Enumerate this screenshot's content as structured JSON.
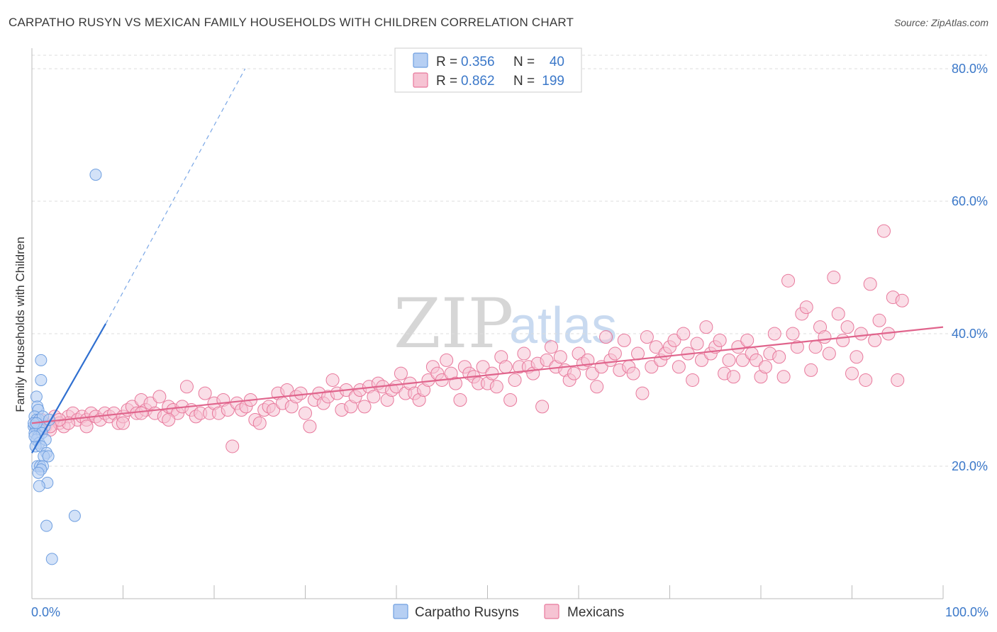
{
  "title": "CARPATHO RUSYN VS MEXICAN FAMILY HOUSEHOLDS WITH CHILDREN CORRELATION CHART",
  "source": "Source: ZipAtlas.com",
  "watermark": {
    "zip": "ZIP",
    "atlas": "atlas"
  },
  "colors": {
    "blue": "#6f9fe0",
    "blue_fill": "#b6cff3",
    "blue_line": "#2f6fd0",
    "pink": "#e8799c",
    "pink_fill": "#f6c3d3",
    "pink_line": "#e0648c",
    "axis_text": "#3b78c9",
    "grid": "#dddddd"
  },
  "legend": {
    "rows": [
      {
        "r_label": "R = ",
        "r_value": "0.356",
        "n_label": "N = ",
        "n_value": "40"
      },
      {
        "r_label": "R = ",
        "r_value": "0.862",
        "n_label": "N = ",
        "n_value": "199"
      }
    ]
  },
  "bottom_legend": [
    "Carpatho Rusyns",
    "Mexicans"
  ],
  "chart_data": {
    "type": "scatter",
    "title": "CARPATHO RUSYN VS MEXICAN FAMILY HOUSEHOLDS WITH CHILDREN CORRELATION CHART",
    "xlabel": "",
    "ylabel": "Family Households with Children",
    "xlim": [
      0,
      100
    ],
    "ylim": [
      0,
      80
    ],
    "x_ticks": [
      "0.0%",
      "100.0%"
    ],
    "y_ticks": [
      "20.0%",
      "40.0%",
      "60.0%",
      "80.0%"
    ],
    "y_tick_values": [
      20,
      40,
      60,
      80
    ],
    "grid": "horizontal dashed",
    "legend_position": "top-center",
    "series": [
      {
        "name": "Carpatho Rusyns",
        "R": 0.356,
        "N": 40,
        "trend": {
          "x0": 0,
          "y0": 22,
          "x1": 8.1,
          "y1": 41.5,
          "dashed_to_x": 23.4,
          "dashed_to_y": 80
        },
        "points": [
          [
            7.0,
            64.0
          ],
          [
            0.5,
            30.5
          ],
          [
            0.6,
            29.0
          ],
          [
            0.7,
            28.5
          ],
          [
            1.0,
            36.0
          ],
          [
            1.0,
            33.0
          ],
          [
            0.3,
            27.5
          ],
          [
            0.5,
            27.0
          ],
          [
            0.8,
            27.0
          ],
          [
            1.2,
            27.5
          ],
          [
            0.2,
            26.0
          ],
          [
            0.4,
            26.0
          ],
          [
            0.6,
            25.5
          ],
          [
            0.9,
            25.5
          ],
          [
            1.4,
            26.0
          ],
          [
            0.3,
            25.0
          ],
          [
            0.7,
            24.5
          ],
          [
            1.1,
            25.0
          ],
          [
            0.5,
            24.0
          ],
          [
            0.8,
            23.5
          ],
          [
            1.5,
            24.0
          ],
          [
            0.4,
            23.0
          ],
          [
            1.0,
            23.0
          ],
          [
            1.6,
            22.0
          ],
          [
            1.3,
            21.5
          ],
          [
            1.8,
            21.5
          ],
          [
            0.6,
            20.0
          ],
          [
            0.9,
            20.0
          ],
          [
            1.2,
            20.0
          ],
          [
            1.0,
            19.5
          ],
          [
            0.7,
            19.0
          ],
          [
            1.7,
            17.5
          ],
          [
            0.8,
            17.0
          ],
          [
            4.7,
            12.5
          ],
          [
            1.6,
            11.0
          ],
          [
            2.2,
            6.0
          ],
          [
            0.2,
            26.5
          ],
          [
            0.5,
            26.5
          ],
          [
            0.3,
            24.5
          ],
          [
            1.9,
            27.0
          ]
        ]
      },
      {
        "name": "Mexicans",
        "R": 0.862,
        "N": 199,
        "trend": {
          "x0": 0,
          "y0": 26.5,
          "x1": 100,
          "y1": 41.0
        },
        "points": [
          [
            0.5,
            26.5
          ],
          [
            1.0,
            27.0
          ],
          [
            1.5,
            26.0
          ],
          [
            2.0,
            25.5
          ],
          [
            2.5,
            27.5
          ],
          [
            3.0,
            26.5
          ],
          [
            3.5,
            26.0
          ],
          [
            4.0,
            27.5
          ],
          [
            4.5,
            28.0
          ],
          [
            5.0,
            27.0
          ],
          [
            5.5,
            27.5
          ],
          [
            6.0,
            27.0
          ],
          [
            6.5,
            28.0
          ],
          [
            7.0,
            27.5
          ],
          [
            7.5,
            27.0
          ],
          [
            8.0,
            28.0
          ],
          [
            8.5,
            27.5
          ],
          [
            9.0,
            28.0
          ],
          [
            9.5,
            26.5
          ],
          [
            10.0,
            27.5
          ],
          [
            10.5,
            28.5
          ],
          [
            11.0,
            29.0
          ],
          [
            11.5,
            28.0
          ],
          [
            12.0,
            30.0
          ],
          [
            12.5,
            28.5
          ],
          [
            13.0,
            29.5
          ],
          [
            13.5,
            28.0
          ],
          [
            14.0,
            30.5
          ],
          [
            14.5,
            27.5
          ],
          [
            15.0,
            29.0
          ],
          [
            15.5,
            28.5
          ],
          [
            16.0,
            28.0
          ],
          [
            16.5,
            29.0
          ],
          [
            17.0,
            32.0
          ],
          [
            17.5,
            28.5
          ],
          [
            18.0,
            27.5
          ],
          [
            18.5,
            28.0
          ],
          [
            19.0,
            31.0
          ],
          [
            19.5,
            28.0
          ],
          [
            20.0,
            29.5
          ],
          [
            20.5,
            28.0
          ],
          [
            21.0,
            30.0
          ],
          [
            21.5,
            28.5
          ],
          [
            22.0,
            23.0
          ],
          [
            22.5,
            29.5
          ],
          [
            23.0,
            28.5
          ],
          [
            23.5,
            29.0
          ],
          [
            24.0,
            30.0
          ],
          [
            24.5,
            27.0
          ],
          [
            25.0,
            26.5
          ],
          [
            25.5,
            28.5
          ],
          [
            26.0,
            29.0
          ],
          [
            26.5,
            28.5
          ],
          [
            27.0,
            31.0
          ],
          [
            27.5,
            29.5
          ],
          [
            28.0,
            31.5
          ],
          [
            28.5,
            29.0
          ],
          [
            29.0,
            30.5
          ],
          [
            29.5,
            31.0
          ],
          [
            30.0,
            28.0
          ],
          [
            30.5,
            26.0
          ],
          [
            31.0,
            30.0
          ],
          [
            31.5,
            31.0
          ],
          [
            32.0,
            29.5
          ],
          [
            32.5,
            30.5
          ],
          [
            33.0,
            33.0
          ],
          [
            33.5,
            31.0
          ],
          [
            34.0,
            28.5
          ],
          [
            34.5,
            31.5
          ],
          [
            35.0,
            29.0
          ],
          [
            35.5,
            30.5
          ],
          [
            36.0,
            31.5
          ],
          [
            36.5,
            29.0
          ],
          [
            37.0,
            32.0
          ],
          [
            37.5,
            30.5
          ],
          [
            38.0,
            32.5
          ],
          [
            38.5,
            32.0
          ],
          [
            39.0,
            30.0
          ],
          [
            39.5,
            31.5
          ],
          [
            40.0,
            32.0
          ],
          [
            40.5,
            34.0
          ],
          [
            41.0,
            31.0
          ],
          [
            41.5,
            32.5
          ],
          [
            42.0,
            31.0
          ],
          [
            42.5,
            30.0
          ],
          [
            43.0,
            31.5
          ],
          [
            43.5,
            33.0
          ],
          [
            44.0,
            35.0
          ],
          [
            44.5,
            34.0
          ],
          [
            45.0,
            33.0
          ],
          [
            45.5,
            36.0
          ],
          [
            46.0,
            34.0
          ],
          [
            46.5,
            32.5
          ],
          [
            47.0,
            30.0
          ],
          [
            47.5,
            35.0
          ],
          [
            48.0,
            34.0
          ],
          [
            48.5,
            33.5
          ],
          [
            49.0,
            32.5
          ],
          [
            49.5,
            35.0
          ],
          [
            50.0,
            32.5
          ],
          [
            50.5,
            34.0
          ],
          [
            51.0,
            32.0
          ],
          [
            51.5,
            36.5
          ],
          [
            52.0,
            35.0
          ],
          [
            52.5,
            30.0
          ],
          [
            53.0,
            33.0
          ],
          [
            53.5,
            35.0
          ],
          [
            54.0,
            37.0
          ],
          [
            54.5,
            35.0
          ],
          [
            55.0,
            34.0
          ],
          [
            55.5,
            35.5
          ],
          [
            56.0,
            29.0
          ],
          [
            56.5,
            36.0
          ],
          [
            57.0,
            38.0
          ],
          [
            57.5,
            35.0
          ],
          [
            58.0,
            36.5
          ],
          [
            58.5,
            34.5
          ],
          [
            59.0,
            33.0
          ],
          [
            59.5,
            34.0
          ],
          [
            60.0,
            37.0
          ],
          [
            60.5,
            35.5
          ],
          [
            61.0,
            36.0
          ],
          [
            61.5,
            34.0
          ],
          [
            62.0,
            32.0
          ],
          [
            62.5,
            35.0
          ],
          [
            63.0,
            39.5
          ],
          [
            63.5,
            36.0
          ],
          [
            64.0,
            37.0
          ],
          [
            64.5,
            34.5
          ],
          [
            65.0,
            39.0
          ],
          [
            65.5,
            35.0
          ],
          [
            66.0,
            34.0
          ],
          [
            66.5,
            37.0
          ],
          [
            67.0,
            31.0
          ],
          [
            67.5,
            39.5
          ],
          [
            68.0,
            35.0
          ],
          [
            68.5,
            38.0
          ],
          [
            69.0,
            36.0
          ],
          [
            69.5,
            37.0
          ],
          [
            70.0,
            38.0
          ],
          [
            70.5,
            39.0
          ],
          [
            71.0,
            35.0
          ],
          [
            71.5,
            40.0
          ],
          [
            72.0,
            37.0
          ],
          [
            72.5,
            33.0
          ],
          [
            73.0,
            38.5
          ],
          [
            73.5,
            36.0
          ],
          [
            74.0,
            41.0
          ],
          [
            74.5,
            37.0
          ],
          [
            75.0,
            38.0
          ],
          [
            75.5,
            39.0
          ],
          [
            76.0,
            34.0
          ],
          [
            76.5,
            36.0
          ],
          [
            77.0,
            33.5
          ],
          [
            77.5,
            38.0
          ],
          [
            78.0,
            36.0
          ],
          [
            78.5,
            39.0
          ],
          [
            79.0,
            37.0
          ],
          [
            79.5,
            36.0
          ],
          [
            80.0,
            33.5
          ],
          [
            80.5,
            35.0
          ],
          [
            81.0,
            37.0
          ],
          [
            81.5,
            40.0
          ],
          [
            82.0,
            36.5
          ],
          [
            82.5,
            33.5
          ],
          [
            83.0,
            48.0
          ],
          [
            83.5,
            40.0
          ],
          [
            84.0,
            38.0
          ],
          [
            84.5,
            43.0
          ],
          [
            85.0,
            44.0
          ],
          [
            85.5,
            34.5
          ],
          [
            86.0,
            38.0
          ],
          [
            86.5,
            41.0
          ],
          [
            87.0,
            39.5
          ],
          [
            87.5,
            37.0
          ],
          [
            88.0,
            48.5
          ],
          [
            88.5,
            43.0
          ],
          [
            89.0,
            39.0
          ],
          [
            89.5,
            41.0
          ],
          [
            90.0,
            34.0
          ],
          [
            90.5,
            36.5
          ],
          [
            91.0,
            40.0
          ],
          [
            91.5,
            33.0
          ],
          [
            92.0,
            47.5
          ],
          [
            92.5,
            39.0
          ],
          [
            93.0,
            42.0
          ],
          [
            93.5,
            55.5
          ],
          [
            94.0,
            40.0
          ],
          [
            94.5,
            45.5
          ],
          [
            95.0,
            33.0
          ],
          [
            95.5,
            45.0
          ],
          [
            4.0,
            26.5
          ],
          [
            6.0,
            26.0
          ],
          [
            3.0,
            27.0
          ],
          [
            2.0,
            26.0
          ],
          [
            1.0,
            25.5
          ],
          [
            10.0,
            26.5
          ],
          [
            12.0,
            28.0
          ],
          [
            15.0,
            27.0
          ]
        ]
      }
    ]
  }
}
